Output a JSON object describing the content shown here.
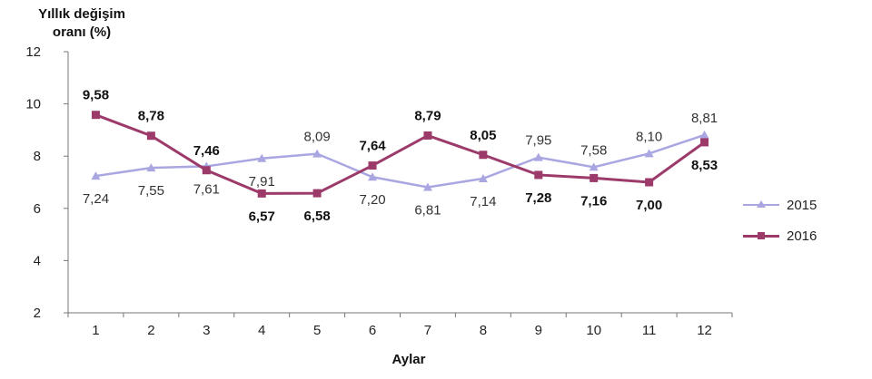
{
  "chart_data": {
    "type": "line",
    "ylabel": "Yıllık değişim\noranı (%)",
    "xlabel": "Aylar",
    "categories": [
      "1",
      "2",
      "3",
      "4",
      "5",
      "6",
      "7",
      "8",
      "9",
      "10",
      "11",
      "12"
    ],
    "y_ticks": [
      "2",
      "4",
      "6",
      "8",
      "10",
      "12"
    ],
    "ylim": [
      2,
      12
    ],
    "grid": false,
    "legend_position": "right",
    "series": [
      {
        "name": "2015",
        "color": "#a9a6e2",
        "marker": "triangle",
        "values": [
          7.24,
          7.55,
          7.61,
          7.91,
          8.09,
          7.2,
          6.81,
          7.14,
          7.95,
          7.58,
          8.1,
          8.81
        ],
        "labels": [
          "7,24",
          "7,55",
          "7,61",
          "7,91",
          "8,09",
          "7,20",
          "6,81",
          "7,14",
          "7,95",
          "7,58",
          "8,10",
          "8,81"
        ]
      },
      {
        "name": "2016",
        "color": "#9c3a6a",
        "marker": "square",
        "values": [
          9.58,
          8.78,
          7.46,
          6.57,
          6.58,
          7.64,
          8.79,
          8.05,
          7.28,
          7.16,
          7.0,
          8.53
        ],
        "labels": [
          "9,58",
          "8,78",
          "7,46",
          "6,57",
          "6,58",
          "7,64",
          "8,79",
          "8,05",
          "7,28",
          "7,16",
          "7,00",
          "8,53"
        ]
      }
    ]
  }
}
